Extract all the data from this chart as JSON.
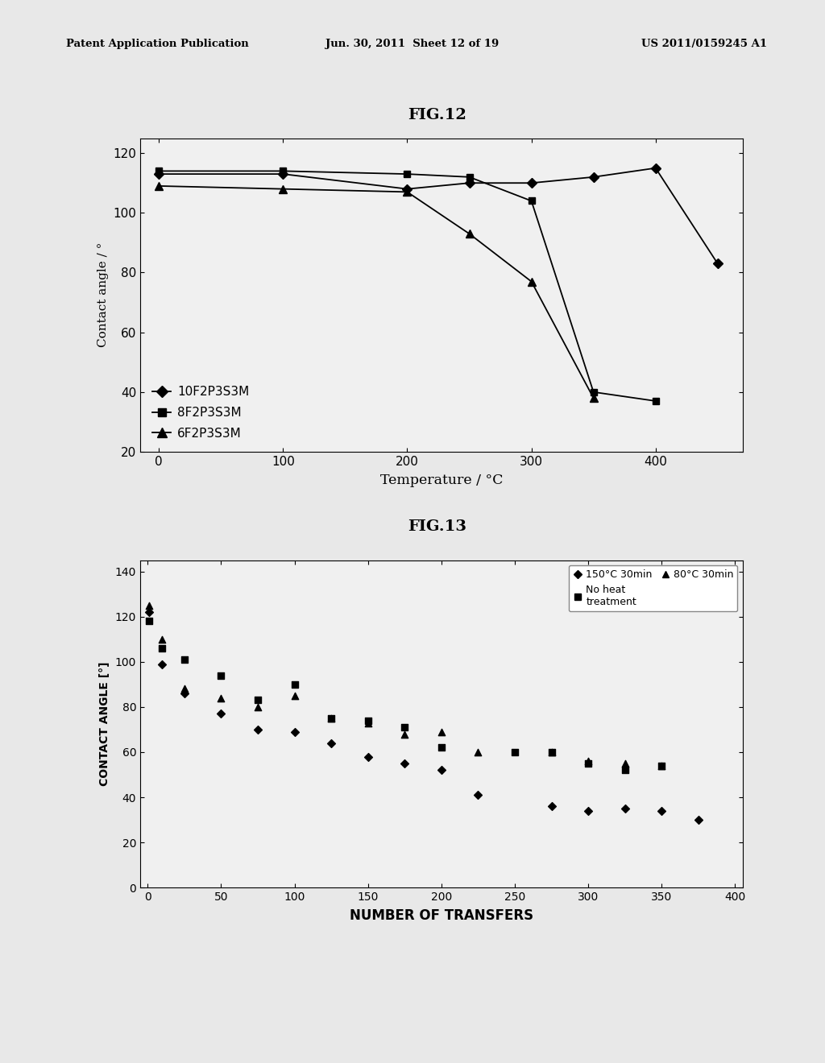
{
  "fig12": {
    "title": "FIG.12",
    "xlabel": "Temperature / °C",
    "ylabel": "Contact angle / °",
    "xlim": [
      -15,
      470
    ],
    "ylim": [
      20,
      125
    ],
    "yticks": [
      20,
      40,
      60,
      80,
      100,
      120
    ],
    "xticks": [
      0,
      100,
      200,
      300,
      400
    ],
    "series": [
      {
        "label": "10F2P3S3M",
        "marker": "D",
        "x": [
          0,
          100,
          200,
          250,
          300,
          350,
          400,
          450
        ],
        "y": [
          113,
          113,
          108,
          110,
          110,
          112,
          115,
          83
        ]
      },
      {
        "label": "8F2P3S3M",
        "marker": "s",
        "x": [
          0,
          100,
          200,
          250,
          300,
          350,
          400
        ],
        "y": [
          114,
          114,
          113,
          112,
          104,
          40,
          37
        ]
      },
      {
        "label": "6F2P3S3M",
        "marker": "^",
        "x": [
          0,
          100,
          200,
          250,
          300,
          350
        ],
        "y": [
          109,
          108,
          107,
          93,
          77,
          38
        ]
      }
    ]
  },
  "fig13": {
    "title": "FIG.13",
    "xlabel": "NUMBER OF TRANSFERS",
    "ylabel": "CONTACT ANGLE [°]",
    "xlim": [
      -5,
      405
    ],
    "ylim": [
      0,
      145
    ],
    "yticks": [
      0,
      20,
      40,
      60,
      80,
      100,
      120,
      140
    ],
    "xticks": [
      0,
      50,
      100,
      150,
      200,
      250,
      300,
      350,
      400
    ],
    "series": [
      {
        "label": "150°C 30min",
        "marker": "D",
        "x": [
          1,
          10,
          25,
          50,
          75,
          100,
          125,
          150,
          175,
          200,
          225,
          275,
          300,
          325,
          350,
          375
        ],
        "y": [
          122,
          99,
          86,
          77,
          70,
          69,
          64,
          58,
          55,
          52,
          41,
          36,
          34,
          35,
          34,
          30
        ]
      },
      {
        "label": "No heat\ntreatment",
        "marker": "s",
        "x": [
          1,
          10,
          25,
          50,
          75,
          100,
          125,
          150,
          175,
          200,
          250,
          275,
          300,
          325,
          350
        ],
        "y": [
          118,
          106,
          101,
          94,
          83,
          90,
          75,
          74,
          71,
          62,
          60,
          60,
          55,
          52,
          54
        ]
      },
      {
        "label": "80°C 30min",
        "marker": "^",
        "x": [
          1,
          10,
          25,
          50,
          75,
          100,
          125,
          150,
          175,
          200,
          225,
          275,
          300,
          325,
          350
        ],
        "y": [
          125,
          110,
          88,
          84,
          80,
          85,
          75,
          73,
          68,
          69,
          60,
          60,
          56,
          55,
          54
        ]
      }
    ]
  },
  "header_left": "Patent Application Publication",
  "header_mid": "Jun. 30, 2011  Sheet 12 of 19",
  "header_right": "US 2011/0159245 A1",
  "color": "#000000",
  "background": "#e8e8e8",
  "plot_bg": "#f0f0f0"
}
